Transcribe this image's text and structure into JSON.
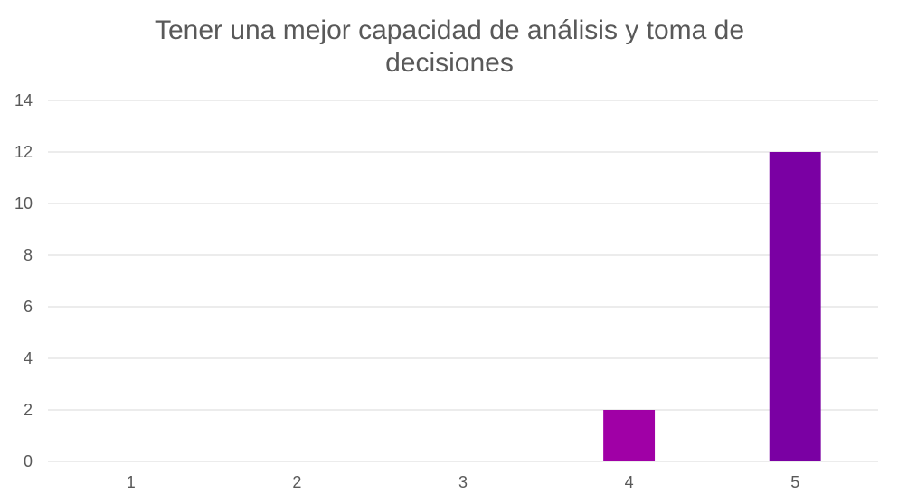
{
  "chart_data": {
    "type": "bar",
    "title_lines": [
      "Tener una mejor capacidad de análisis y toma de",
      "decisiones"
    ],
    "categories": [
      "1",
      "2",
      "3",
      "4",
      "5"
    ],
    "values": [
      0,
      0,
      0,
      2,
      12
    ],
    "bar_colors": [
      "#9e009e",
      "#9e009e",
      "#9e009e",
      "#a000a6",
      "#7a00a3"
    ],
    "ylim": [
      0,
      14
    ],
    "yticks": [
      0,
      2,
      4,
      6,
      8,
      10,
      12,
      14
    ],
    "grid": true,
    "legend": "none",
    "xlabel": "",
    "ylabel": ""
  }
}
